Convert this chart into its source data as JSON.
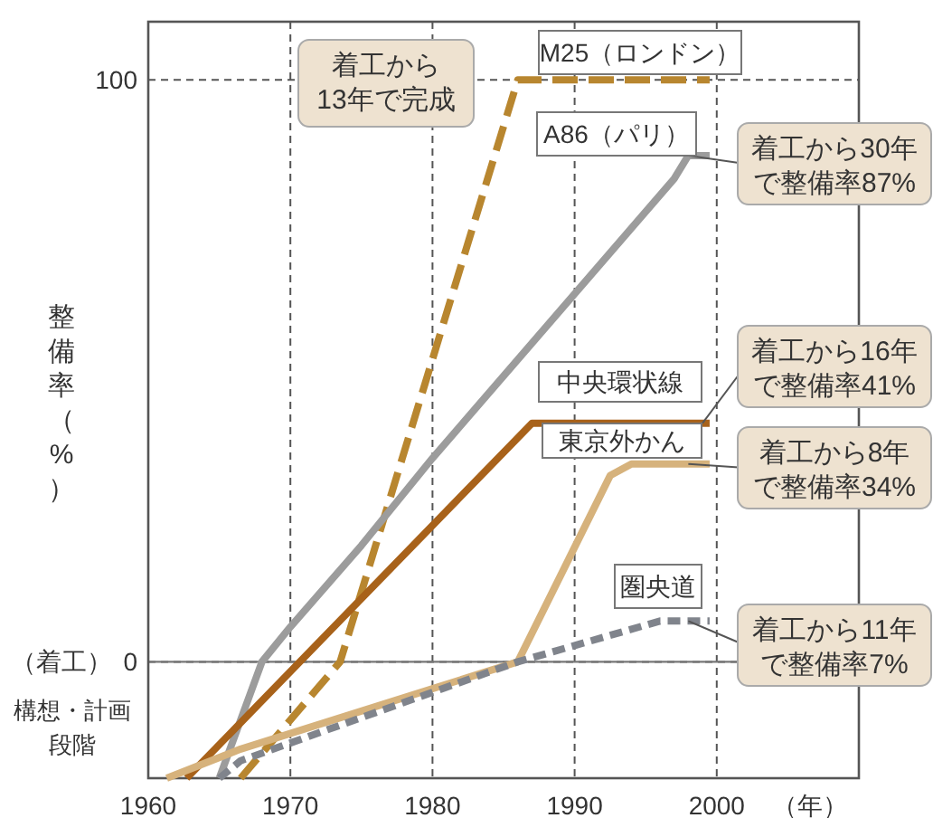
{
  "chart_data": {
    "type": "line",
    "ylabel": "整備率（%）",
    "xlabel": "（年）",
    "xlim": [
      1960,
      2010
    ],
    "ylim": [
      -20,
      110
    ],
    "xticks": [
      1960,
      1970,
      1980,
      1990,
      2000
    ],
    "yticks": [
      0,
      100
    ],
    "grid": true,
    "legend": false,
    "ref_lines": [
      {
        "axis": "y",
        "value": 0,
        "label": "（着工）",
        "line_style": "solid",
        "color": "#777777"
      }
    ],
    "series": [
      {
        "name": "M25（ロンドン）",
        "color": "#b8862f",
        "line_style": "dashed",
        "x": [
          1966.5,
          1973.5,
          1986,
          1999.5
        ],
        "values": [
          -20,
          0,
          100,
          100
        ]
      },
      {
        "name": "A86（パリ）",
        "color": "#9c9c9c",
        "line_style": "solid",
        "x": [
          1965,
          1968,
          1970,
          1975,
          1980,
          1997,
          1998,
          1999.5
        ],
        "values": [
          -20,
          0,
          6,
          20,
          35,
          83,
          87,
          87
        ]
      },
      {
        "name": "中央環状線",
        "color": "#a8621a",
        "line_style": "solid",
        "x": [
          1962.7,
          1987,
          1999.5
        ],
        "values": [
          -20,
          41,
          41
        ]
      },
      {
        "name": "東京外かん",
        "color": "#d6b27c",
        "line_style": "solid",
        "x": [
          1961.3,
          1966.5,
          1986,
          1992.5,
          1994,
          1999.5
        ],
        "values": [
          -20,
          -15,
          0,
          32,
          34,
          34
        ]
      },
      {
        "name": "圏央道",
        "color": "#80848c",
        "line_style": "dotted",
        "x": [
          1965,
          1966.5,
          1986,
          1996,
          1999.5
        ],
        "values": [
          -20,
          -17,
          0,
          7,
          7
        ]
      }
    ],
    "annotations": [
      {
        "text": "着工から13年で完成",
        "x": 1986,
        "y": 100
      },
      {
        "text": "着工から30年で整備率87%",
        "x": 1998,
        "y": 87
      },
      {
        "text": "着工から16年で整備率41%",
        "x": 1999,
        "y": 41
      },
      {
        "text": "着工から8年で整備率34%",
        "x": 1998,
        "y": 34
      },
      {
        "text": "着工から11年で整備率7%",
        "x": 1998,
        "y": 7
      },
      "構想・計画段階"
    ]
  }
}
